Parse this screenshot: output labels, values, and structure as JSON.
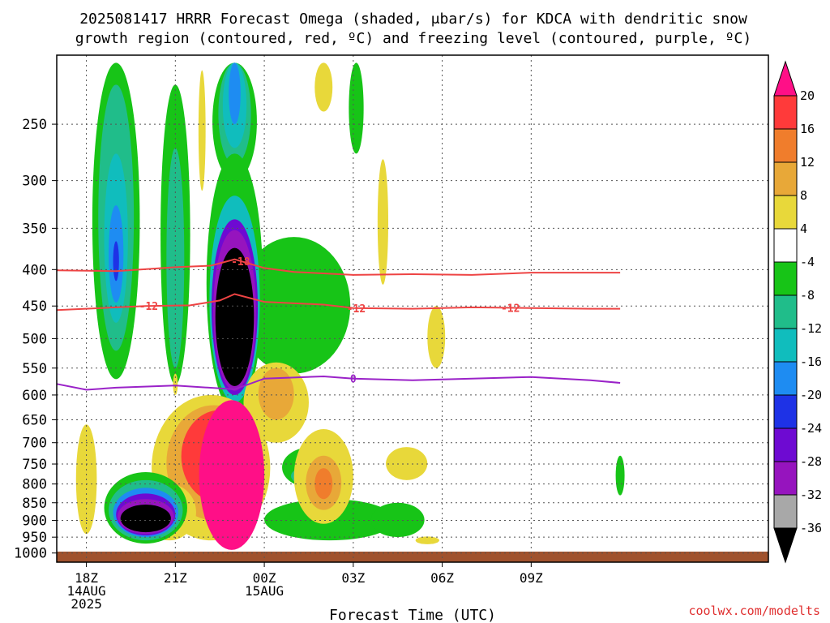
{
  "chart_data": {
    "type": "heatmap",
    "title_line1": "2025081417 HRRR Forecast Omega (shaded, μbar/s) for KDCA with dendritic snow",
    "title_line2": "growth region (contoured, red, ºC) and freezing level (contoured, purple, ºC)",
    "xlabel": "Forecast Time (UTC)",
    "ylabel": "",
    "watermark": "coolwx.com/modelts",
    "y_axis": {
      "scale": "log-pressure",
      "units": "hPa",
      "direction": "decreasing-upward",
      "range": [
        1030,
        200
      ],
      "ticks": [
        250,
        300,
        350,
        400,
        450,
        500,
        550,
        600,
        650,
        700,
        750,
        800,
        850,
        900,
        950,
        1000
      ]
    },
    "x_axis": {
      "range_hours_from_18Z": [
        -1,
        23
      ],
      "ticks": [
        {
          "hour": 0,
          "lines": [
            "18Z",
            "14AUG",
            "2025"
          ]
        },
        {
          "hour": 3,
          "lines": [
            "21Z"
          ]
        },
        {
          "hour": 6,
          "lines": [
            "00Z",
            "15AUG"
          ]
        },
        {
          "hour": 9,
          "lines": [
            "03Z"
          ]
        },
        {
          "hour": 12,
          "lines": [
            "06Z"
          ]
        },
        {
          "hour": 15,
          "lines": [
            "09Z"
          ]
        }
      ]
    },
    "grid": true,
    "colorbar": {
      "placement": "right",
      "levels": [
        "20",
        "16",
        "12",
        "8",
        "4",
        "-4",
        "-8",
        "-12",
        "-16",
        "-20",
        "-24",
        "-28",
        "-32",
        "-36"
      ],
      "colors": [
        "#ff0f87",
        "#ff3a3a",
        "#f07d2c",
        "#e8a838",
        "#e8d83a",
        "#ffffff",
        "#17c417",
        "#20bd8a",
        "#10bdbd",
        "#1e8cf2",
        "#1e32e6",
        "#6e0ad2",
        "#9614be",
        "#a8a8a8",
        "#000000"
      ]
    },
    "contours": [
      {
        "name": "dendritic-18",
        "label": "-18",
        "color": "#ee4444",
        "points": [
          [
            -1,
            401
          ],
          [
            1,
            402
          ],
          [
            3,
            397
          ],
          [
            4.2,
            395
          ],
          [
            5,
            387
          ],
          [
            6,
            398
          ],
          [
            7,
            403
          ],
          [
            9,
            407
          ],
          [
            11,
            406
          ],
          [
            13,
            407
          ],
          [
            15,
            404
          ],
          [
            17,
            404
          ],
          [
            18,
            404
          ]
        ],
        "labels_at": [
          5.2
        ]
      },
      {
        "name": "dendritic-12",
        "label": "-12",
        "color": "#ee4444",
        "points": [
          [
            -1,
            456
          ],
          [
            1,
            452
          ],
          [
            2,
            450
          ],
          [
            3.5,
            449
          ],
          [
            4.5,
            442
          ],
          [
            5,
            433
          ],
          [
            6,
            444
          ],
          [
            8,
            448
          ],
          [
            9,
            453
          ],
          [
            11,
            454
          ],
          [
            13,
            452
          ],
          [
            15,
            453
          ],
          [
            17,
            454
          ],
          [
            18,
            454
          ]
        ],
        "labels_at": [
          2.1,
          9.1,
          14.3
        ]
      },
      {
        "name": "freezing-level",
        "label": "0",
        "color": "#9a22c8",
        "points": [
          [
            -1,
            579
          ],
          [
            0,
            590
          ],
          [
            1,
            586
          ],
          [
            3,
            582
          ],
          [
            5,
            589
          ],
          [
            6,
            569
          ],
          [
            8,
            565
          ],
          [
            9,
            569
          ],
          [
            11,
            572
          ],
          [
            13,
            569
          ],
          [
            15,
            566
          ],
          [
            17,
            572
          ],
          [
            18,
            577
          ]
        ],
        "labels_at": [
          9.0
        ]
      }
    ],
    "omega_regions": [
      {
        "name": "blob-upper-left-green",
        "level": -8,
        "cx": 1,
        "cp": 370,
        "rh": 0.8,
        "rp": 200
      },
      {
        "name": "blob-upper-left-teal",
        "level": -12,
        "cx": 1,
        "cp": 370,
        "rh": 0.6,
        "rp": 150
      },
      {
        "name": "blob-upper-left-cyan",
        "level": -16,
        "cx": 1,
        "cp": 375,
        "rh": 0.4,
        "rp": 100
      },
      {
        "name": "blob-upper-left-blue",
        "level": -20,
        "cx": 1,
        "cp": 385,
        "rh": 0.25,
        "rp": 60
      },
      {
        "name": "blob-upper-left-core",
        "level": -24,
        "cx": 1,
        "cp": 390,
        "rh": 0.1,
        "rp": 25
      },
      {
        "name": "column-21z-green",
        "level": -8,
        "cx": 3,
        "cp": 400,
        "rh": 0.5,
        "rp": 180
      },
      {
        "name": "column-21z-teal",
        "level": -12,
        "cx": 3,
        "cp": 410,
        "rh": 0.3,
        "rp": 140
      },
      {
        "name": "column-top-green",
        "level": -8,
        "cx": 5,
        "cp": 240,
        "rh": 0.75,
        "rp": 60
      },
      {
        "name": "column-top-teal",
        "level": -12,
        "cx": 5,
        "cp": 240,
        "rh": 0.55,
        "rp": 45
      },
      {
        "name": "column-top-cyan",
        "level": -16,
        "cx": 5,
        "cp": 235,
        "rh": 0.4,
        "rp": 35
      },
      {
        "name": "column-top-blue",
        "level": -20,
        "cx": 5,
        "cp": 225,
        "rh": 0.2,
        "rp": 25
      },
      {
        "name": "tongue-green",
        "level": -8,
        "cx": 7,
        "cp": 460,
        "rh": 1.9,
        "rp": 100
      },
      {
        "name": "core-mid-green",
        "level": -8,
        "cx": 5,
        "cp": 455,
        "rh": 0.95,
        "rp": 180
      },
      {
        "name": "core-mid-cyan",
        "level": -16,
        "cx": 5,
        "cp": 465,
        "rh": 0.85,
        "rp": 150
      },
      {
        "name": "core-mid-violet",
        "level": -28,
        "cx": 5,
        "cp": 470,
        "rh": 0.78,
        "rp": 130
      },
      {
        "name": "core-mid-gray",
        "level": -32,
        "cx": 5,
        "cp": 472,
        "rh": 0.72,
        "rp": 120
      },
      {
        "name": "core-mid-black",
        "level": -36,
        "cx": 5,
        "cp": 478,
        "rh": 0.65,
        "rp": 105
      },
      {
        "name": "mid-yellow",
        "level": 4,
        "cx": 6.4,
        "cp": 620,
        "rh": 1.1,
        "rp": 80
      },
      {
        "name": "mid-orange",
        "level": 8,
        "cx": 6.4,
        "cp": 600,
        "rh": 0.6,
        "rp": 50
      },
      {
        "name": "low-yellow-band",
        "level": 4,
        "cx": 4.2,
        "cp": 780,
        "rh": 2.0,
        "rp": 180
      },
      {
        "name": "low-orange-band",
        "level": 8,
        "cx": 4.3,
        "cp": 760,
        "rh": 1.6,
        "rp": 140
      },
      {
        "name": "low-red-band",
        "level": 16,
        "cx": 4.5,
        "cp": 740,
        "rh": 1.3,
        "rp": 110
      },
      {
        "name": "low-magenta-core",
        "level": 20,
        "cx": 4.9,
        "cp": 800,
        "rh": 1.1,
        "rp": 190
      },
      {
        "name": "low-left-yellow",
        "level": 4,
        "cx": 2.8,
        "cp": 880,
        "rh": 0.9,
        "rp": 80
      },
      {
        "name": "low-left-green",
        "level": -8,
        "cx": 2,
        "cp": 870,
        "rh": 1.4,
        "rp": 100
      },
      {
        "name": "low-left-teal",
        "level": -12,
        "cx": 2,
        "cp": 875,
        "rh": 1.25,
        "rp": 85
      },
      {
        "name": "low-left-blue",
        "level": -20,
        "cx": 2,
        "cp": 880,
        "rh": 1.1,
        "rp": 70
      },
      {
        "name": "low-left-violet",
        "level": -28,
        "cx": 2,
        "cp": 885,
        "rh": 1.0,
        "rp": 60
      },
      {
        "name": "low-left-gray",
        "level": -32,
        "cx": 2,
        "cp": 890,
        "rh": 0.95,
        "rp": 50
      },
      {
        "name": "low-left-black",
        "level": -36,
        "cx": 2,
        "cp": 895,
        "rh": 0.85,
        "rp": 40
      },
      {
        "name": "left-yellow-lobe",
        "level": 4,
        "cx": 0,
        "cp": 800,
        "rh": 0.35,
        "rp": 140
      },
      {
        "name": "low-right-green",
        "level": -8,
        "cx": 8.2,
        "cp": 900,
        "rh": 2.2,
        "rp": 60
      },
      {
        "name": "low-right-green2",
        "level": -8,
        "cx": 7.6,
        "cp": 760,
        "rh": 1.0,
        "rp": 50
      },
      {
        "name": "low-right-teal",
        "level": -12,
        "cx": 7.6,
        "cp": 780,
        "rh": 0.7,
        "rp": 25
      },
      {
        "name": "low-right-yellow",
        "level": 4,
        "cx": 8.0,
        "cp": 790,
        "rh": 1.0,
        "rp": 120
      },
      {
        "name": "low-right-orange",
        "level": 8,
        "cx": 8.0,
        "cp": 800,
        "rh": 0.6,
        "rp": 70
      },
      {
        "name": "low-right-red",
        "level": 12,
        "cx": 8.0,
        "cp": 800,
        "rh": 0.3,
        "rp": 40
      },
      {
        "name": "yellow-upper-1",
        "level": 4,
        "cx": 8.0,
        "cp": 215,
        "rh": 0.3,
        "rp": 25
      },
      {
        "name": "yellow-upper-2",
        "level": 4,
        "cx": 3.9,
        "cp": 260,
        "rh": 0.12,
        "rp": 50
      },
      {
        "name": "green-upper-right",
        "level": -8,
        "cx": 9.1,
        "cp": 230,
        "rh": 0.25,
        "rp": 45
      },
      {
        "name": "yellow-right-tall",
        "level": 4,
        "cx": 10,
        "cp": 350,
        "rh": 0.18,
        "rp": 70
      },
      {
        "name": "yellow-right-mid",
        "level": 4,
        "cx": 11.8,
        "cp": 500,
        "rh": 0.3,
        "rp": 50
      },
      {
        "name": "green-right-low",
        "level": -8,
        "cx": 10.5,
        "cp": 900,
        "rh": 0.9,
        "rp": 50
      },
      {
        "name": "yellow-right-low",
        "level": 4,
        "cx": 10.8,
        "cp": 750,
        "rh": 0.7,
        "rp": 40
      },
      {
        "name": "yellow-far-low",
        "level": 4,
        "cx": 11.5,
        "cp": 960,
        "rh": 0.4,
        "rp": 12
      },
      {
        "name": "green-edge",
        "level": -8,
        "cx": 18,
        "cp": 780,
        "rh": 0.15,
        "rp": 50
      },
      {
        "name": "yellow-tiny",
        "level": 4,
        "cx": 3.0,
        "cp": 580,
        "rh": 0.08,
        "rp": 20
      }
    ]
  }
}
